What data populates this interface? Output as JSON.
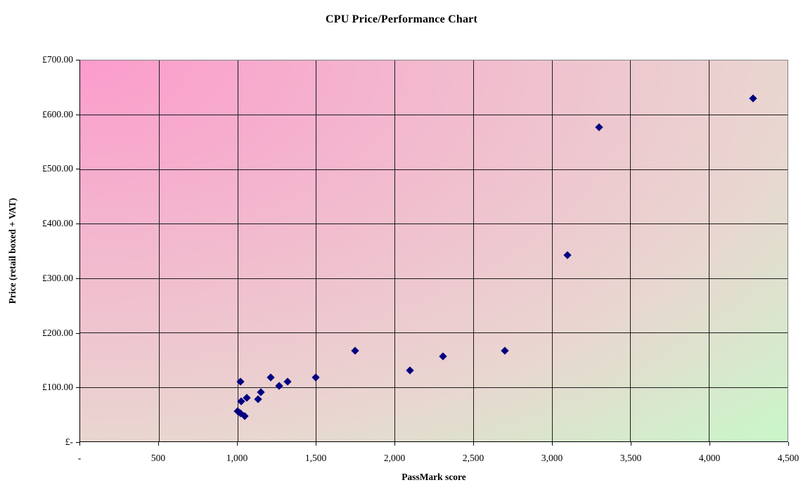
{
  "chart_data": {
    "type": "scatter",
    "title": "CPU Price/Performance Chart",
    "xlabel": "PassMark score",
    "ylabel": "Price (retail boxed + VAT)",
    "xlim": [
      0,
      4500
    ],
    "ylim": [
      0,
      700
    ],
    "x_tick_interval": 500,
    "y_tick_interval": 100,
    "x_tick_labels": [
      "-",
      "500",
      "1,000",
      "1,500",
      "2,000",
      "2,500",
      "3,000",
      "3,500",
      "4,000",
      "4,500"
    ],
    "y_tick_labels": [
      "£-",
      "£100.00",
      "£200.00",
      "£300.00",
      "£400.00",
      "£500.00",
      "£600.00",
      "£700.00"
    ],
    "grid": true,
    "legend": false,
    "marker": {
      "shape": "diamond",
      "color": "#000080"
    },
    "colors": {
      "plot_gradient_from": "#fc9ccc",
      "plot_gradient_via": "#e9d6d0",
      "plot_gradient_to": "#c9f7c9",
      "gridline": "#1c1c1c",
      "plot_border": "#848284",
      "axis_line": "#000000",
      "text": "#000000"
    },
    "points": [
      {
        "x": 1000,
        "y": 56
      },
      {
        "x": 1020,
        "y": 52
      },
      {
        "x": 1020,
        "y": 110
      },
      {
        "x": 1025,
        "y": 73
      },
      {
        "x": 1045,
        "y": 46
      },
      {
        "x": 1060,
        "y": 80
      },
      {
        "x": 1130,
        "y": 78
      },
      {
        "x": 1150,
        "y": 90
      },
      {
        "x": 1210,
        "y": 118
      },
      {
        "x": 1265,
        "y": 102
      },
      {
        "x": 1320,
        "y": 110
      },
      {
        "x": 1500,
        "y": 118
      },
      {
        "x": 1750,
        "y": 167
      },
      {
        "x": 2100,
        "y": 131
      },
      {
        "x": 2310,
        "y": 156
      },
      {
        "x": 2700,
        "y": 166
      },
      {
        "x": 3100,
        "y": 342
      },
      {
        "x": 3300,
        "y": 577
      },
      {
        "x": 4280,
        "y": 630
      }
    ]
  }
}
